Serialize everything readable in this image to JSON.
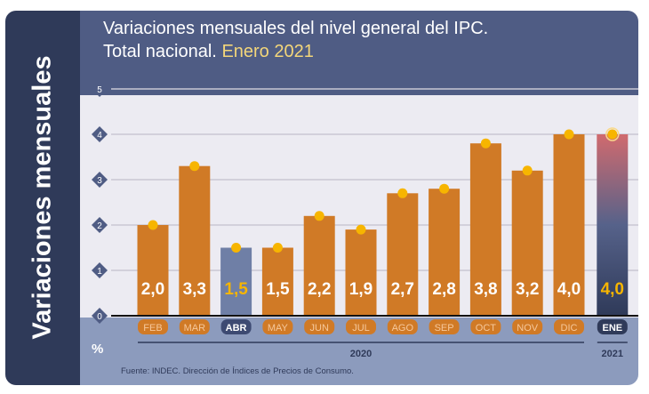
{
  "chart_data": {
    "type": "bar",
    "title": "Variaciones mensuales del nivel general del IPC.",
    "subtitle_prefix": "Total nacional.",
    "subtitle_highlight": "Enero 2021",
    "ylabel": "Variaciones mensuales",
    "yunit": "%",
    "ylim": [
      0,
      5
    ],
    "yticks": [
      "0",
      "1",
      "2",
      "3",
      "4",
      "5"
    ],
    "grid": true,
    "categories": [
      "FEB",
      "MAR",
      "ABR",
      "MAY",
      "JUN",
      "JUL",
      "AGO",
      "SEP",
      "OCT",
      "NOV",
      "DIC",
      "ENE"
    ],
    "values": [
      2.0,
      3.3,
      1.5,
      1.5,
      2.2,
      1.9,
      2.7,
      2.8,
      3.8,
      3.2,
      4.0,
      4.0
    ],
    "data_labels": [
      "2,0",
      "3,3",
      "1,5",
      "1,5",
      "2,2",
      "1,9",
      "2,7",
      "2,8",
      "3,8",
      "3,2",
      "4,0",
      "4,0"
    ],
    "year_groups": [
      {
        "label": "2020",
        "from": 0,
        "to": 10
      },
      {
        "label": "2021",
        "from": 11,
        "to": 11
      }
    ],
    "source": "Fuente: INDEC. Dirección de Índices de Precios de Consumo.",
    "colors": {
      "bar": "#d07a26",
      "highlight_abr": "#6f7fa6",
      "highlight_ene_top": "#d06a6e",
      "highlight_ene_bottom": "#2f3a59",
      "marker": "#f7b500",
      "label_highlight": "#f7b500"
    }
  }
}
